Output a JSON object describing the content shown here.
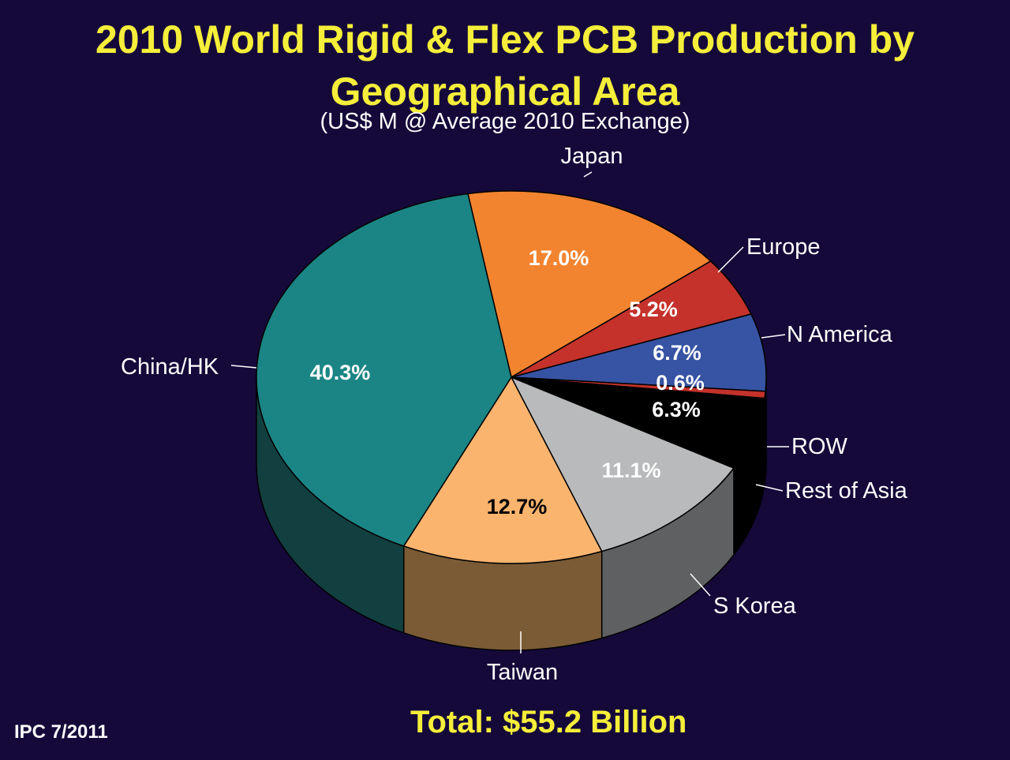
{
  "header": {
    "title_line1": "2010 World Rigid & Flex PCB Production by",
    "title_line2": "Geographical Area",
    "subtitle": "(US$ M @ Average 2010 Exchange)"
  },
  "footer": {
    "total": "Total: $55.2 Billion",
    "source": "IPC 7/2011"
  },
  "chart_data": {
    "type": "pie",
    "title": "2010 World Rigid & Flex PCB Production by Geographical Area",
    "subtitle": "(US$ M @ Average 2010 Exchange)",
    "slices": [
      {
        "label": "Japan",
        "value": 17.0,
        "display": "17.0%",
        "color": "#f3842f",
        "side_color": "#8a4a1a"
      },
      {
        "label": "Europe",
        "value": 5.2,
        "display": "5.2%",
        "color": "#c4322b",
        "side_color": "#6e1c18"
      },
      {
        "label": "N America",
        "value": 6.7,
        "display": "6.7%",
        "color": "#3753a3",
        "side_color": "#1f2f5c"
      },
      {
        "label": "ROW",
        "value": 0.6,
        "display": "0.6%",
        "color": "#c4322b",
        "side_color": "#6e1c18"
      },
      {
        "label": "Rest of Asia",
        "value": 6.3,
        "display": "6.3%",
        "color": "#000000",
        "side_color": "#000000"
      },
      {
        "label": "S Korea",
        "value": 11.1,
        "display": "11.1%",
        "color": "#b8babb",
        "side_color": "#5e6062"
      },
      {
        "label": "Taiwan",
        "value": 12.7,
        "display": "12.7%",
        "color": "#fbb46e",
        "side_color": "#7a5b36"
      },
      {
        "label": "China/HK",
        "value": 40.3,
        "display": "40.3%",
        "color": "#1b8585",
        "side_color": "#123f40"
      }
    ],
    "total": "Total: $55.2 Billion"
  }
}
